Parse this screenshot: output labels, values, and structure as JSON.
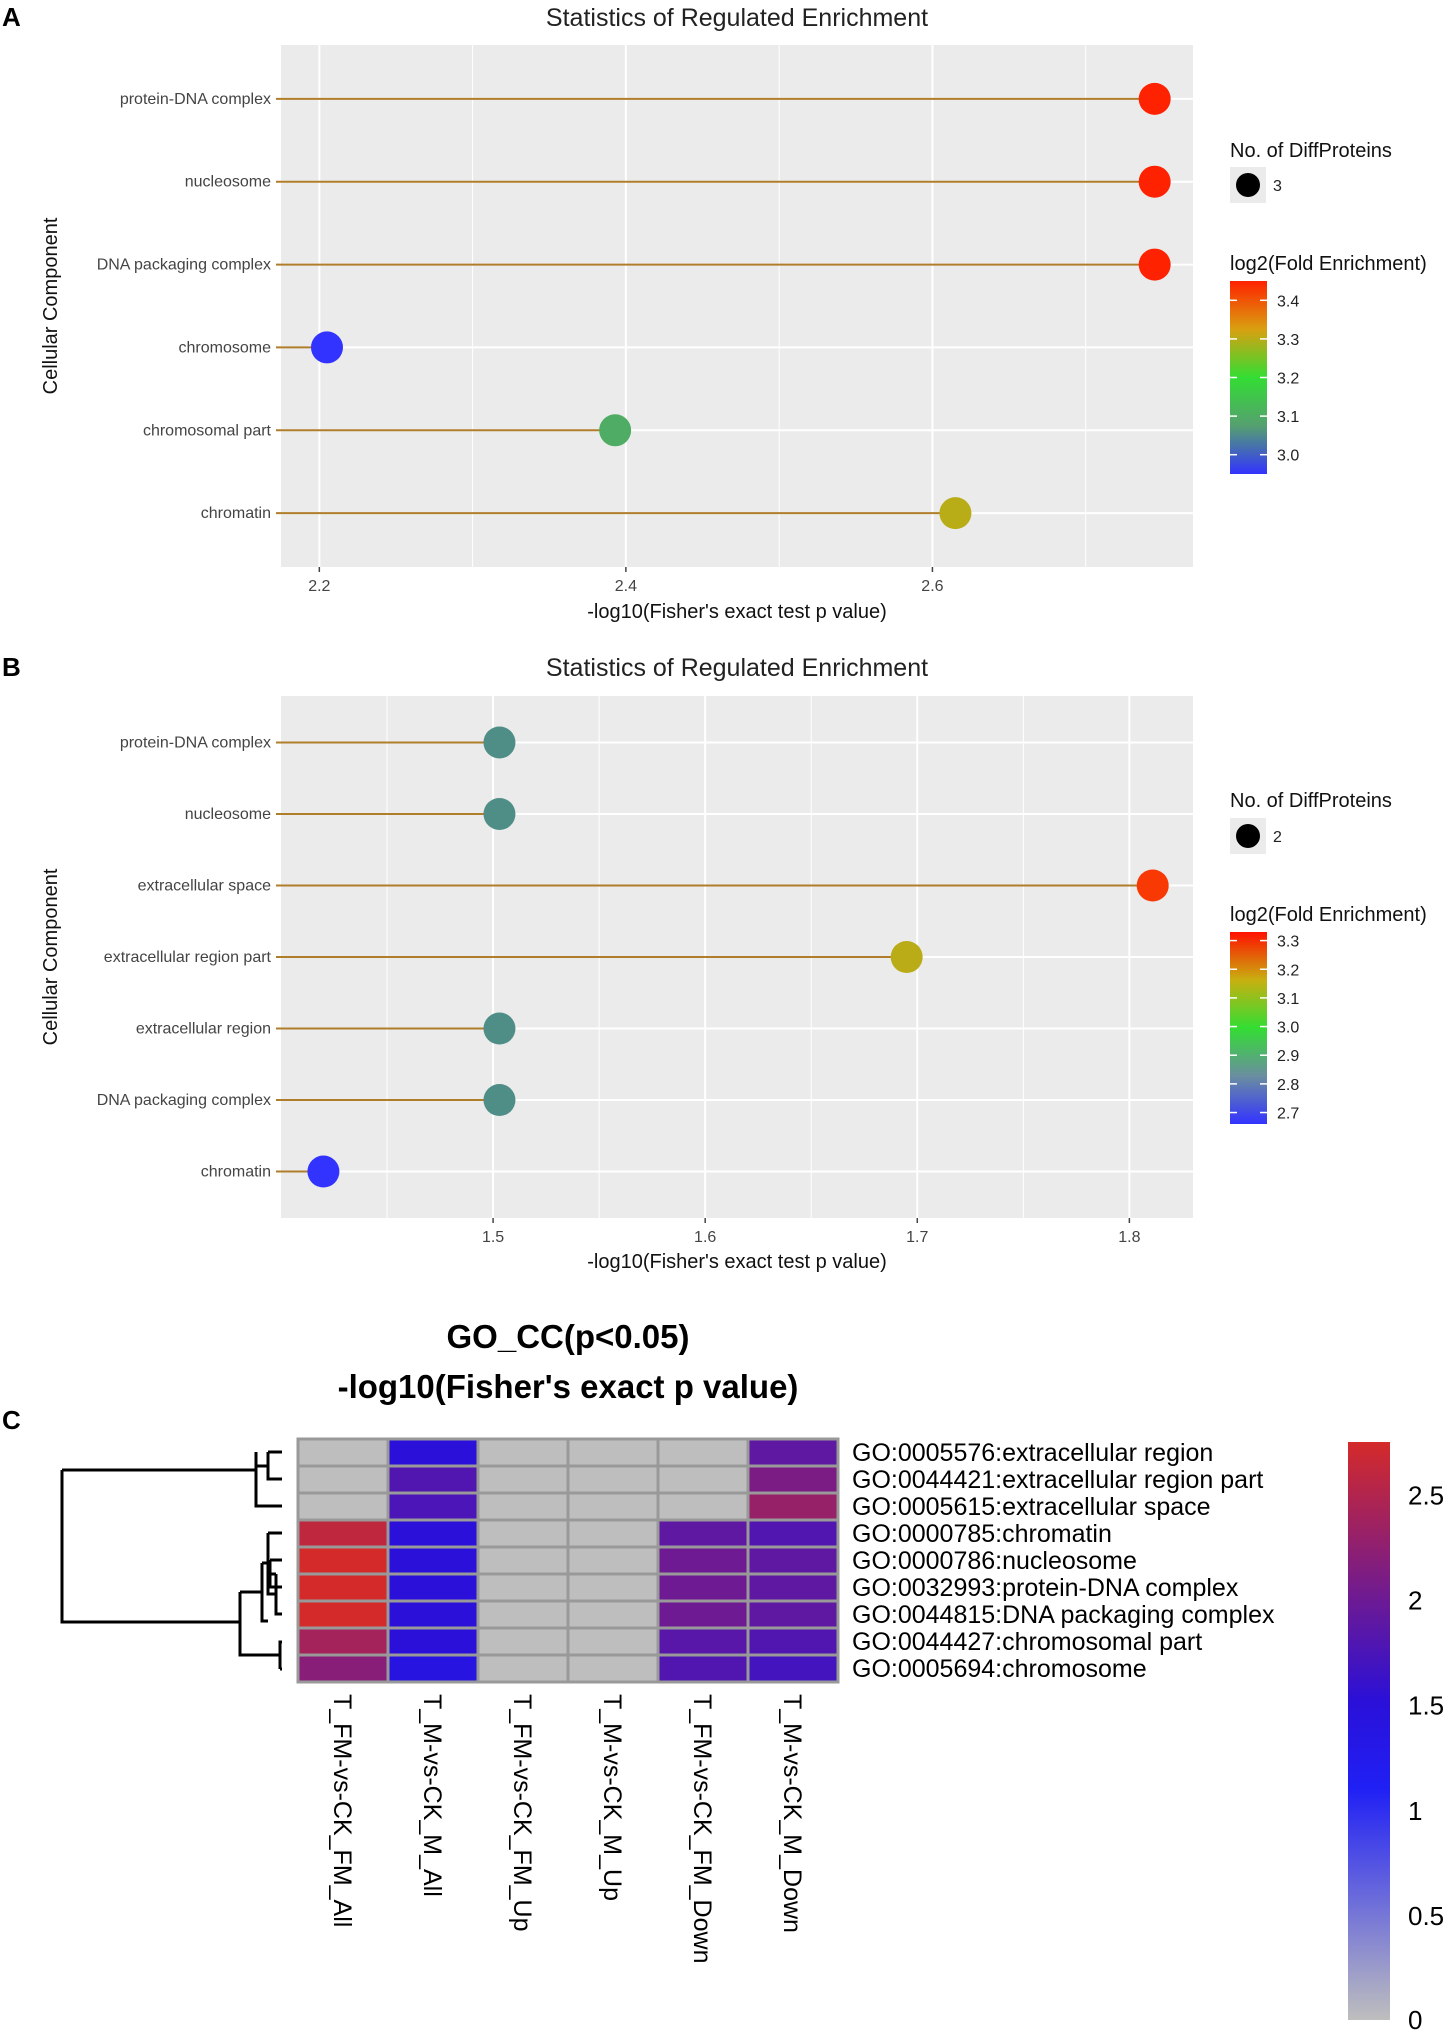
{
  "panel_labels": {
    "a": "A",
    "b": "B",
    "c": "C"
  },
  "chart_data": [
    {
      "type": "scatter",
      "subtype": "lollipop",
      "panel": "A",
      "title": "Statistics of Regulated Enrichment",
      "xlabel": "-log10(Fisher's exact test p value)",
      "ylabel": "Cellular Component",
      "xlim": [
        2.175,
        2.77
      ],
      "xticks": [
        2.2,
        2.4,
        2.6
      ],
      "grid": true,
      "categories": [
        "protein-DNA complex",
        "nucleosome",
        "DNA packaging complex",
        "chromosome",
        "chromosomal part",
        "chromatin"
      ],
      "values": [
        2.745,
        2.745,
        2.745,
        2.205,
        2.393,
        2.615
      ],
      "color_values": [
        3.45,
        3.45,
        3.45,
        2.95,
        3.1,
        3.3
      ],
      "legend_size_title": "No. of DiffProteins",
      "legend_size_value": "3",
      "legend_color_title": "log2(Fold Enrichment)",
      "legend_color_ticks": [
        "3.4",
        "3.3",
        "3.2",
        "3.1",
        "3.0"
      ],
      "legend_color_tick_values": [
        3.4,
        3.3,
        3.2,
        3.1,
        3.0
      ],
      "color_range": [
        2.95,
        3.45
      ],
      "legend_position": "right"
    },
    {
      "type": "scatter",
      "subtype": "lollipop",
      "panel": "B",
      "title": "Statistics of Regulated Enrichment",
      "xlabel": "-log10(Fisher's exact test p value)",
      "ylabel": "Cellular Component",
      "xlim": [
        1.4,
        1.83
      ],
      "xticks": [
        1.5,
        1.6,
        1.7,
        1.8
      ],
      "grid": true,
      "categories": [
        "protein-DNA complex",
        "nucleosome",
        "extracellular space",
        "extracellular region part",
        "extracellular region",
        "DNA packaging complex",
        "chromatin"
      ],
      "values": [
        1.503,
        1.503,
        1.811,
        1.695,
        1.503,
        1.503,
        1.42
      ],
      "color_values": [
        2.8,
        2.8,
        3.3,
        3.13,
        2.8,
        2.8,
        2.66
      ],
      "legend_size_title": "No. of DiffProteins",
      "legend_size_value": "2",
      "legend_color_title": "log2(Fold Enrichment)",
      "legend_color_ticks": [
        "3.3",
        "3.2",
        "3.1",
        "3.0",
        "2.9",
        "2.8",
        "2.7"
      ],
      "legend_color_tick_values": [
        3.3,
        3.2,
        3.1,
        3.0,
        2.9,
        2.8,
        2.7
      ],
      "color_range": [
        2.66,
        3.33
      ],
      "legend_position": "right"
    },
    {
      "type": "heatmap",
      "panel": "C",
      "title": "GO_CC(p<0.05)",
      "subtitle": "-log10(Fisher's exact p value)",
      "rows": [
        "GO:0005576:extracellular region",
        "GO:0044421:extracellular region part",
        "GO:0005615:extracellular space",
        "GO:0000785:chromatin",
        "GO:0000786:nucleosome",
        "GO:0032993:protein-DNA complex",
        "GO:0044815:DNA packaging complex",
        "GO:0044427:chromosomal part",
        "GO:0005694:chromosome"
      ],
      "columns": [
        "T_FM-vs-CK_FM_All",
        "T_M-vs-CK_M_All",
        "T_FM-vs-CK_FM_Up",
        "T_M-vs-CK_M_Up",
        "T_FM-vs-CK_FM_Down",
        "T_M-vs-CK_M_Down"
      ],
      "values": [
        [
          0,
          1.5,
          0,
          0,
          0,
          1.9
        ],
        [
          0,
          1.8,
          0,
          0,
          0,
          2.1
        ],
        [
          0,
          1.75,
          0,
          0,
          0,
          2.3
        ],
        [
          2.6,
          1.5,
          0,
          0,
          1.9,
          1.8
        ],
        [
          2.75,
          1.5,
          0,
          0,
          2.0,
          1.9
        ],
        [
          2.75,
          1.5,
          0,
          0,
          2.0,
          1.9
        ],
        [
          2.75,
          1.5,
          0,
          0,
          2.0,
          1.9
        ],
        [
          2.4,
          1.5,
          0,
          0,
          1.85,
          1.8
        ],
        [
          2.2,
          1.4,
          0,
          0,
          1.8,
          1.7
        ]
      ],
      "colorbar_ticks": [
        "2.5",
        "2",
        "1.5",
        "1",
        "0.5",
        "0"
      ],
      "colorbar_tick_values": [
        2.5,
        2,
        1.5,
        1,
        0.5,
        0
      ],
      "color_range": [
        0,
        2.75
      ]
    }
  ],
  "colors": {
    "panel_bg": "#ebebeb",
    "grid": "#ffffff",
    "stem": "#b07d2a",
    "heatmap_border": "#999999",
    "heatmap_low": "#bebebe",
    "heatmap_mid": "#1515ff",
    "heatmap_high": "#d42a2a"
  }
}
